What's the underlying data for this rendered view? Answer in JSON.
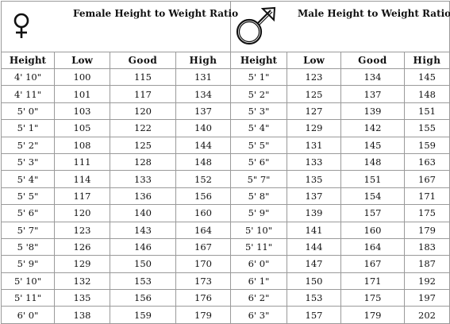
{
  "female": {
    "title": "Female Height to Weight Ratio",
    "symbol": "female-symbol"
  },
  "male": {
    "title": "Male Height to Weight Ratio",
    "symbol": "male-symbol"
  },
  "headers": [
    "Height",
    "Low",
    "Good",
    "High"
  ],
  "rows": [
    {
      "f": [
        "4' 10\"",
        "100",
        "115",
        "131"
      ],
      "m": [
        "5' 1\"",
        "123",
        "134",
        "145"
      ]
    },
    {
      "f": [
        "4' 11\"",
        "101",
        "117",
        "134"
      ],
      "m": [
        "5' 2\"",
        "125",
        "137",
        "148"
      ]
    },
    {
      "f": [
        "5' 0\"",
        "103",
        "120",
        "137"
      ],
      "m": [
        "5' 3\"",
        "127",
        "139",
        "151"
      ]
    },
    {
      "f": [
        "5' 1\"",
        "105",
        "122",
        "140"
      ],
      "m": [
        "5' 4\"",
        "129",
        "142",
        "155"
      ]
    },
    {
      "f": [
        "5' 2\"",
        "108",
        "125",
        "144"
      ],
      "m": [
        "5' 5\"",
        "131",
        "145",
        "159"
      ]
    },
    {
      "f": [
        "5' 3\"",
        "111",
        "128",
        "148"
      ],
      "m": [
        "5' 6\"",
        "133",
        "148",
        "163"
      ]
    },
    {
      "f": [
        "5' 4\"",
        "114",
        "133",
        "152"
      ],
      "m": [
        "5\" 7\"",
        "135",
        "151",
        "167"
      ]
    },
    {
      "f": [
        "5' 5\"",
        "117",
        "136",
        "156"
      ],
      "m": [
        "5' 8\"",
        "137",
        "154",
        "171"
      ]
    },
    {
      "f": [
        "5' 6\"",
        "120",
        "140",
        "160"
      ],
      "m": [
        "5' 9\"",
        "139",
        "157",
        "175"
      ]
    },
    {
      "f": [
        "5' 7\"",
        "123",
        "143",
        "164"
      ],
      "m": [
        "5' 10\"",
        "141",
        "160",
        "179"
      ]
    },
    {
      "f": [
        "5 '8\"",
        "126",
        "146",
        "167"
      ],
      "m": [
        "5' 11\"",
        "144",
        "164",
        "183"
      ]
    },
    {
      "f": [
        "5' 9\"",
        "129",
        "150",
        "170"
      ],
      "m": [
        "6' 0\"",
        "147",
        "167",
        "187"
      ]
    },
    {
      "f": [
        "5' 10\"",
        "132",
        "153",
        "173"
      ],
      "m": [
        "6' 1\"",
        "150",
        "171",
        "192"
      ]
    },
    {
      "f": [
        "5' 11\"",
        "135",
        "156",
        "176"
      ],
      "m": [
        "6' 2\"",
        "153",
        "175",
        "197"
      ]
    },
    {
      "f": [
        "6' 0\"",
        "138",
        "159",
        "179"
      ],
      "m": [
        "6' 3\"",
        "157",
        "179",
        "202"
      ]
    }
  ]
}
